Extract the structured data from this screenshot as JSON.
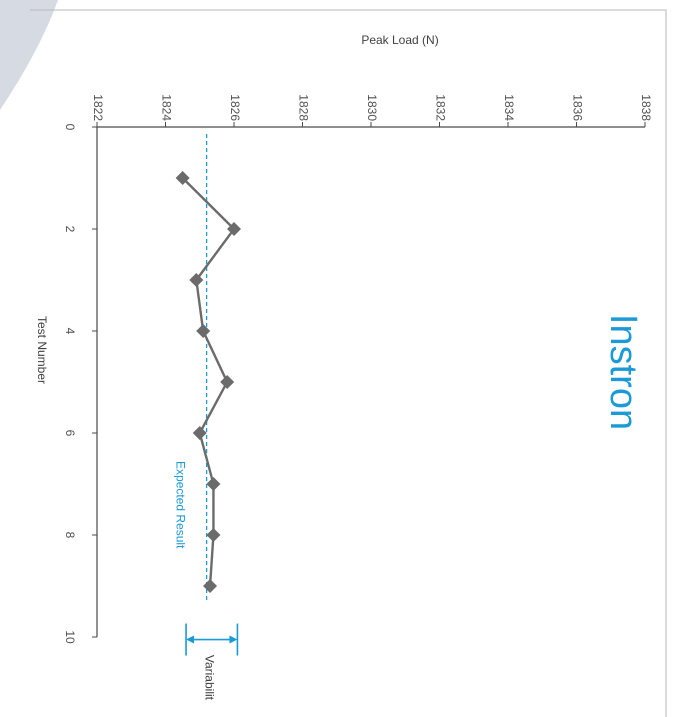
{
  "brand": {
    "name": "Instron"
  },
  "colors": {
    "accent": "#1a9ad6",
    "series": "#6b6b6b"
  },
  "chart_data": {
    "type": "line",
    "orientation": "rotated-90-clockwise",
    "xlabel": "Test Number",
    "ylabel": "Peak Load (N)",
    "xlim": [
      0,
      10
    ],
    "ylim": [
      1822,
      1838
    ],
    "x_ticks": [
      "0",
      "2",
      "4",
      "6",
      "8",
      "10"
    ],
    "y_ticks": [
      "1822",
      "1824",
      "1826",
      "1828",
      "1830",
      "1832",
      "1834",
      "1836",
      "1838"
    ],
    "series": [
      {
        "x": [
          1,
          2,
          3,
          4,
          5,
          6,
          7,
          8,
          9
        ],
        "values": [
          1824.5,
          1826.0,
          1824.9,
          1825.1,
          1825.8,
          1825.0,
          1825.4,
          1825.4,
          1825.3
        ],
        "marker": "diamond"
      }
    ],
    "reference_line": {
      "label": "Expected Result",
      "value": 1825.2
    },
    "variability": {
      "label": "Variabilit",
      "from": 1824.6,
      "to": 1826.1
    },
    "grid": false,
    "legend": "none"
  }
}
